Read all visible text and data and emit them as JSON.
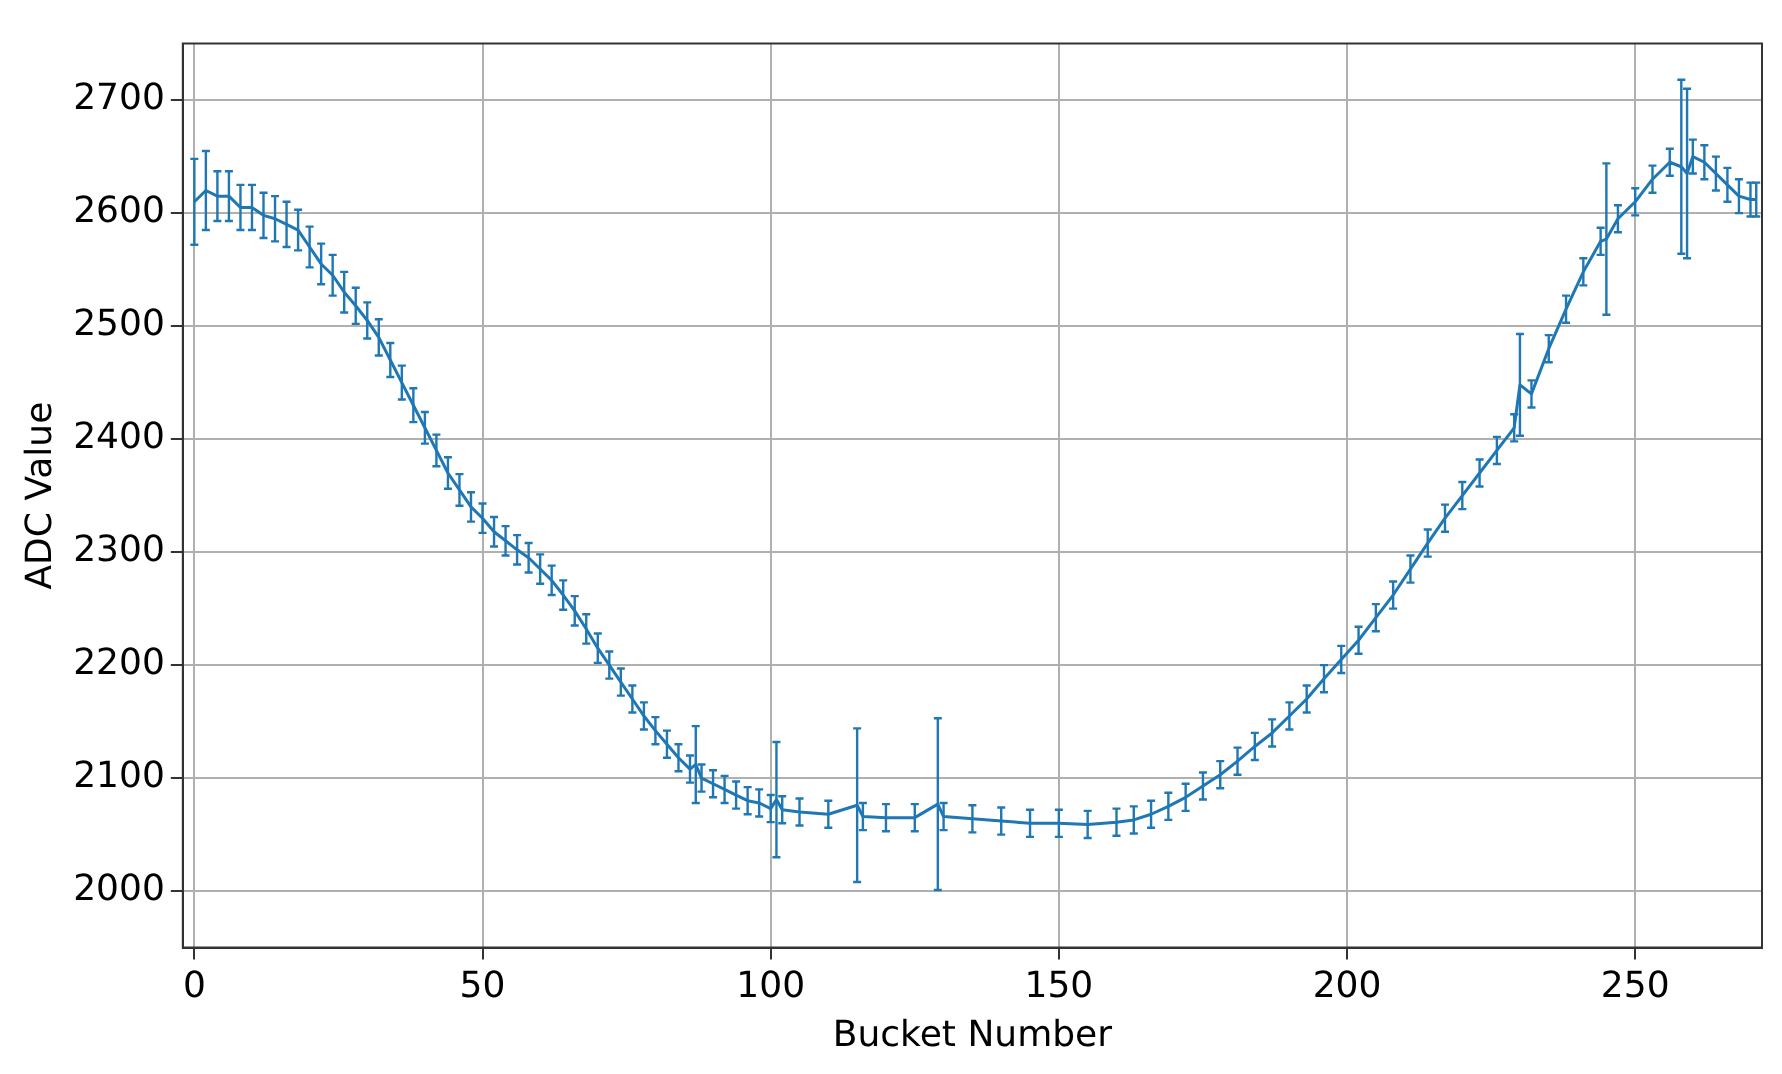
{
  "chart_data": {
    "type": "line",
    "xlabel": "Bucket Number",
    "ylabel": "ADC Value",
    "x": [
      0,
      2,
      4,
      6,
      8,
      10,
      12,
      14,
      16,
      18,
      20,
      22,
      24,
      26,
      28,
      30,
      32,
      34,
      36,
      38,
      40,
      42,
      44,
      46,
      48,
      50,
      52,
      54,
      56,
      58,
      60,
      62,
      64,
      66,
      68,
      70,
      72,
      74,
      76,
      78,
      80,
      82,
      84,
      86,
      87,
      88,
      90,
      92,
      94,
      96,
      98,
      100,
      101,
      102,
      105,
      110,
      115,
      116,
      120,
      125,
      129,
      130,
      135,
      140,
      145,
      150,
      155,
      160,
      163,
      166,
      169,
      172,
      175,
      178,
      181,
      184,
      187,
      190,
      193,
      196,
      199,
      202,
      205,
      208,
      211,
      214,
      217,
      220,
      223,
      226,
      229,
      230,
      232,
      235,
      238,
      241,
      244,
      245,
      247,
      250,
      253,
      256,
      258,
      259,
      260,
      262,
      264,
      266,
      268,
      270,
      271
    ],
    "series": [
      {
        "color": "#1f77b4",
        "values": [
          2610,
          2620,
          2615,
          2615,
          2605,
          2605,
          2598,
          2595,
          2590,
          2585,
          2570,
          2555,
          2545,
          2530,
          2518,
          2505,
          2490,
          2470,
          2450,
          2430,
          2410,
          2390,
          2370,
          2355,
          2340,
          2330,
          2318,
          2310,
          2302,
          2295,
          2285,
          2275,
          2262,
          2248,
          2232,
          2215,
          2200,
          2185,
          2170,
          2155,
          2142,
          2130,
          2118,
          2108,
          2112,
          2100,
          2095,
          2090,
          2085,
          2080,
          2078,
          2073,
          2081,
          2072,
          2070,
          2068,
          2076,
          2066,
          2065,
          2065,
          2077,
          2066,
          2064,
          2062,
          2060,
          2060,
          2059,
          2061,
          2063,
          2068,
          2075,
          2083,
          2093,
          2103,
          2115,
          2128,
          2140,
          2155,
          2170,
          2188,
          2205,
          2222,
          2242,
          2262,
          2285,
          2308,
          2330,
          2350,
          2370,
          2390,
          2410,
          2448,
          2440,
          2480,
          2515,
          2548,
          2575,
          2577,
          2595,
          2610,
          2630,
          2645,
          2641,
          2635,
          2650,
          2645,
          2635,
          2625,
          2615,
          2612,
          2612
        ],
        "errors": [
          38,
          35,
          22,
          22,
          20,
          20,
          20,
          20,
          20,
          18,
          18,
          18,
          18,
          18,
          16,
          16,
          16,
          15,
          15,
          15,
          14,
          14,
          14,
          14,
          13,
          13,
          13,
          13,
          13,
          13,
          13,
          13,
          13,
          13,
          13,
          13,
          12,
          12,
          12,
          12,
          12,
          12,
          12,
          12,
          34,
          12,
          12,
          12,
          12,
          12,
          12,
          12,
          51,
          12,
          12,
          12,
          68,
          12,
          12,
          12,
          76,
          12,
          12,
          12,
          12,
          12,
          12,
          12,
          12,
          12,
          12,
          12,
          12,
          12,
          12,
          12,
          12,
          12,
          12,
          12,
          12,
          12,
          12,
          12,
          12,
          12,
          12,
          12,
          12,
          12,
          12,
          45,
          12,
          12,
          12,
          12,
          12,
          67,
          12,
          12,
          12,
          12,
          77,
          75,
          15,
          15,
          15,
          15,
          15,
          15,
          15
        ]
      }
    ],
    "xlim": [
      -2,
      272
    ],
    "xticks": [
      0,
      50,
      100,
      150,
      200,
      250
    ],
    "ylim": [
      1950,
      2750
    ],
    "yticks": [
      2000,
      2100,
      2200,
      2300,
      2400,
      2500,
      2600,
      2700
    ],
    "grid": true,
    "marker": "none",
    "line_style": "solid",
    "legend": false
  }
}
